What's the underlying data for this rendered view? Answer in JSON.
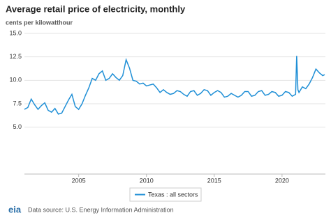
{
  "chart_data": {
    "type": "line",
    "title": "Average retail price of electricity, monthly",
    "subtitle": "cents per kilowatthour",
    "source": "Data source: U.S. Energy Information Administration",
    "logo": "eia",
    "x": [
      2001.0,
      2001.25,
      2001.5,
      2001.75,
      2002.0,
      2002.25,
      2002.5,
      2002.75,
      2003.0,
      2003.25,
      2003.5,
      2003.75,
      2004.0,
      2004.25,
      2004.5,
      2004.75,
      2005.0,
      2005.25,
      2005.5,
      2005.75,
      2006.0,
      2006.25,
      2006.5,
      2006.75,
      2007.0,
      2007.25,
      2007.5,
      2007.75,
      2008.0,
      2008.25,
      2008.5,
      2008.75,
      2009.0,
      2009.25,
      2009.5,
      2009.75,
      2010.0,
      2010.25,
      2010.5,
      2010.75,
      2011.0,
      2011.25,
      2011.5,
      2011.75,
      2012.0,
      2012.25,
      2012.5,
      2012.75,
      2013.0,
      2013.25,
      2013.5,
      2013.75,
      2014.0,
      2014.25,
      2014.5,
      2014.75,
      2015.0,
      2015.25,
      2015.5,
      2015.75,
      2016.0,
      2016.25,
      2016.5,
      2016.75,
      2017.0,
      2017.25,
      2017.5,
      2017.75,
      2018.0,
      2018.25,
      2018.5,
      2018.75,
      2019.0,
      2019.25,
      2019.5,
      2019.75,
      2020.0,
      2020.25,
      2020.5,
      2020.75,
      2021.0,
      2021.08,
      2021.17,
      2021.25,
      2021.5,
      2021.75,
      2022.0,
      2022.25,
      2022.5,
      2022.75,
      2023.0,
      2023.15
    ],
    "series": [
      {
        "name": "Texas : all sectors",
        "color": "#1f8fd6",
        "values": [
          6.9,
          7.1,
          8.0,
          7.4,
          6.9,
          7.3,
          7.6,
          6.8,
          6.6,
          7.0,
          6.4,
          6.5,
          7.2,
          7.9,
          8.5,
          7.2,
          6.9,
          7.5,
          8.4,
          9.2,
          10.2,
          10.0,
          10.7,
          11.0,
          10.0,
          10.2,
          10.7,
          10.3,
          10.0,
          10.5,
          12.2,
          11.3,
          10.0,
          9.9,
          9.6,
          9.7,
          9.4,
          9.5,
          9.6,
          9.2,
          8.7,
          9.0,
          8.7,
          8.5,
          8.6,
          8.9,
          8.8,
          8.5,
          8.3,
          8.8,
          8.9,
          8.4,
          8.6,
          9.0,
          8.9,
          8.4,
          8.7,
          8.9,
          8.7,
          8.2,
          8.3,
          8.6,
          8.4,
          8.2,
          8.4,
          8.8,
          8.8,
          8.3,
          8.4,
          8.8,
          8.9,
          8.4,
          8.5,
          8.8,
          8.7,
          8.3,
          8.4,
          8.8,
          8.7,
          8.3,
          8.5,
          12.6,
          9.0,
          8.7,
          9.3,
          9.1,
          9.6,
          10.3,
          11.2,
          10.8,
          10.5,
          10.6
        ]
      }
    ],
    "xlim": [
      2001,
      2023.2
    ],
    "xticks": [
      2005,
      2010,
      2015,
      2020
    ],
    "ylim": [
      0,
      15
    ],
    "yticks": [
      {
        "value": 5,
        "label": "5.0"
      },
      7.5,
      {
        "value": 10,
        "label": "10.0"
      },
      12.5,
      {
        "value": 15,
        "label": "15.0"
      }
    ],
    "grid": true
  }
}
